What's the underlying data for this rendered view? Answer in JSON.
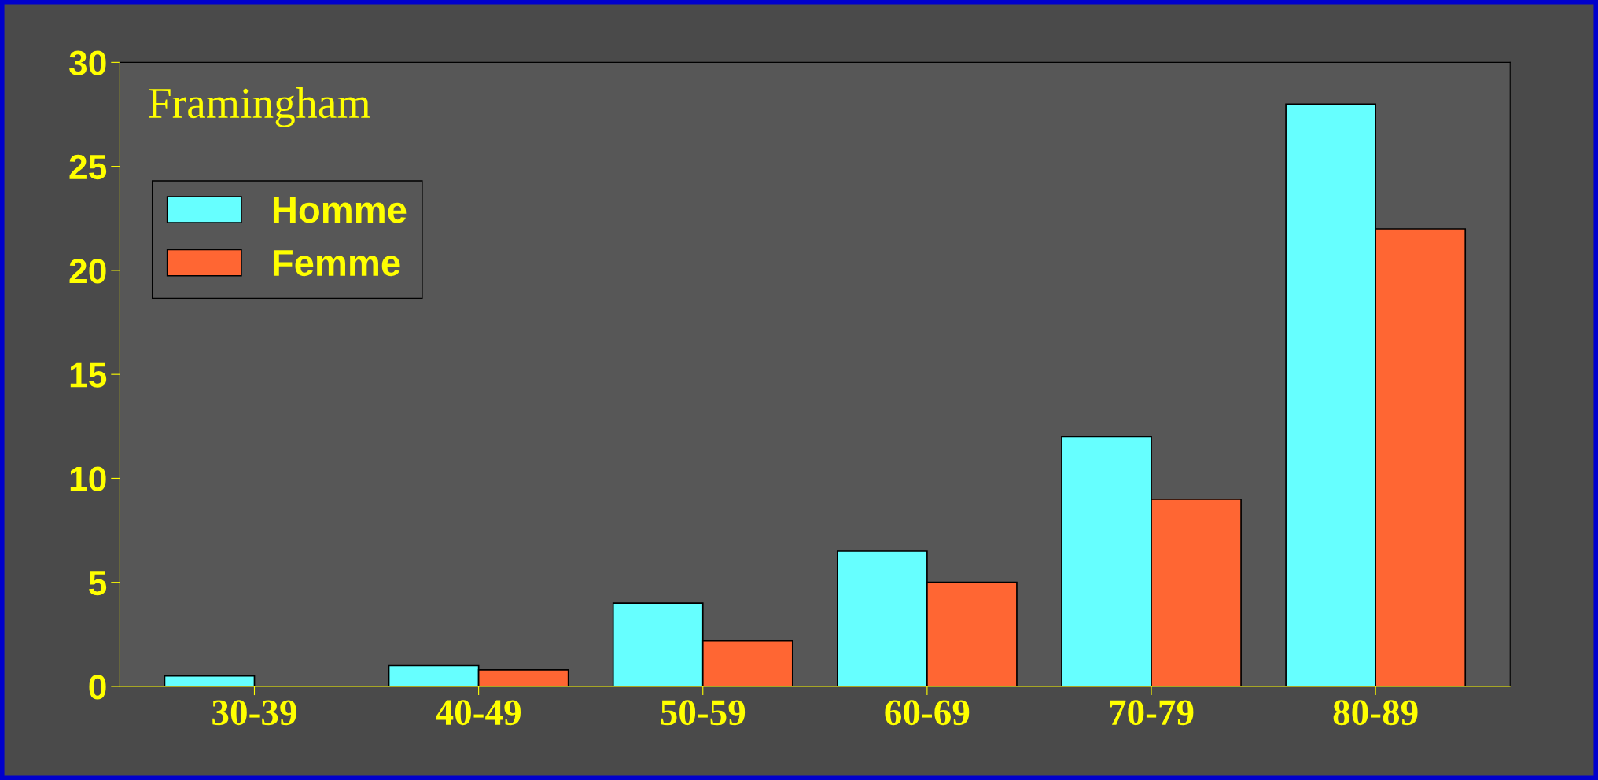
{
  "chart_data": {
    "type": "bar",
    "title": "Framingham",
    "categories": [
      "30-39",
      "40-49",
      "50-59",
      "60-69",
      "70-79",
      "80-89"
    ],
    "series": [
      {
        "name": "Homme",
        "color": "#66ffff",
        "values": [
          0.5,
          1,
          4,
          6.5,
          12,
          28
        ]
      },
      {
        "name": "Femme",
        "color": "#ff6633",
        "values": [
          0,
          0.8,
          2.2,
          5,
          9,
          22
        ]
      }
    ],
    "ylim": [
      0,
      30
    ],
    "yticks": [
      0,
      5,
      10,
      15,
      20,
      25,
      30
    ],
    "grid": false,
    "legend": "top left"
  }
}
